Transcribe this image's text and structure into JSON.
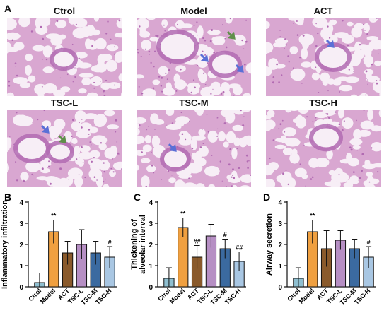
{
  "figure": {
    "panel_a_label": "A",
    "histology": [
      {
        "label": "Ctrol"
      },
      {
        "label": "Model"
      },
      {
        "label": "ACT"
      },
      {
        "label": "TSC-L"
      },
      {
        "label": "TSC-M"
      },
      {
        "label": "TSC-H"
      }
    ]
  },
  "colors": {
    "tissue": "#d9a7d1",
    "tissue_dark": "#b26bb3",
    "background": "#f7eef6",
    "arrow_blue": "#5a6fd6",
    "arrow_green": "#5f8f4a"
  },
  "chart_data": [
    {
      "panel": "B",
      "type": "bar",
      "ylabel": "Inflammatory infiltration",
      "ylim": [
        0,
        4
      ],
      "yticks": [
        "0",
        "1",
        "2",
        "3",
        "4"
      ],
      "categories": [
        "Ctrol",
        "Model",
        "ACT",
        "TSC-L",
        "TSC-M",
        "TSC-H"
      ],
      "values": [
        0.2,
        2.6,
        1.6,
        2.0,
        1.6,
        1.4
      ],
      "errors": [
        0.45,
        0.55,
        0.55,
        0.7,
        0.55,
        0.5
      ],
      "annotations": [
        "",
        "**",
        "",
        "",
        "",
        "#"
      ],
      "bar_colors": [
        "#8fbfd0",
        "#f0a040",
        "#8a5a2b",
        "#b68fc4",
        "#3b6aa0",
        "#a9c7e3"
      ]
    },
    {
      "panel": "C",
      "type": "bar",
      "ylabel": "Thickening of alveolar interval",
      "ylim": [
        0,
        4
      ],
      "yticks": [
        "0",
        "1",
        "2",
        "3",
        "4"
      ],
      "categories": [
        "Ctrol",
        "Model",
        "ACT",
        "TSC-L",
        "TSC-M",
        "TSC-H"
      ],
      "values": [
        0.4,
        2.8,
        1.4,
        2.4,
        1.8,
        1.2
      ],
      "errors": [
        0.5,
        0.45,
        0.55,
        0.55,
        0.45,
        0.45
      ],
      "annotations": [
        "",
        "**",
        "##",
        "",
        "#",
        "##"
      ],
      "bar_colors": [
        "#8fbfd0",
        "#f0a040",
        "#8a5a2b",
        "#b68fc4",
        "#3b6aa0",
        "#a9c7e3"
      ]
    },
    {
      "panel": "D",
      "type": "bar",
      "ylabel": "Airway secretion",
      "ylim": [
        0,
        4
      ],
      "yticks": [
        "0",
        "1",
        "2",
        "3",
        "4"
      ],
      "categories": [
        "Ctrol",
        "Model",
        "ACT",
        "TSC-L",
        "TSC-M",
        "TSC-H"
      ],
      "values": [
        0.4,
        2.6,
        1.8,
        2.2,
        1.8,
        1.4
      ],
      "errors": [
        0.5,
        0.55,
        0.85,
        0.45,
        0.45,
        0.5
      ],
      "annotations": [
        "",
        "**",
        "",
        "",
        "",
        "#"
      ],
      "bar_colors": [
        "#8fbfd0",
        "#f0a040",
        "#8a5a2b",
        "#b68fc4",
        "#3b6aa0",
        "#a9c7e3"
      ]
    }
  ]
}
